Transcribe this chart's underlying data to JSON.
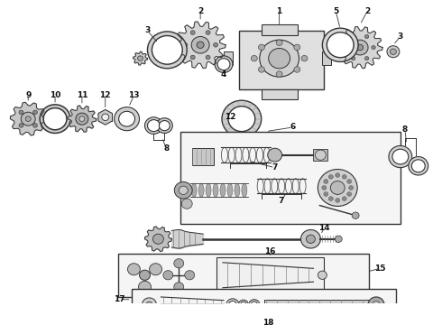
{
  "bg_color": "#ffffff",
  "fig_width": 4.9,
  "fig_height": 3.6,
  "dpi": 100,
  "line_color": "#333333",
  "fill_light": "#e8e8e8",
  "fill_mid": "#cccccc",
  "fill_dark": "#888888"
}
